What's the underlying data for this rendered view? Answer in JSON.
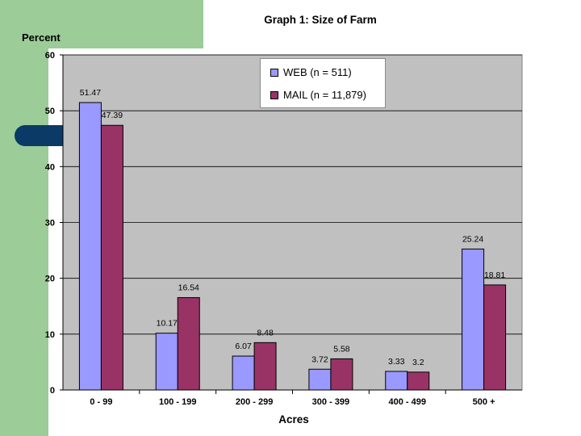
{
  "chart_data": {
    "type": "bar",
    "title": "Graph 1:  Size of Farm",
    "ylabel": "Percent",
    "xlabel": "Acres",
    "categories": [
      "0 - 99",
      "100 - 199",
      "200 - 299",
      "300 - 399",
      "400 - 499",
      "500 +"
    ],
    "series": [
      {
        "name": "WEB (n = 511)",
        "color": "#9999ff",
        "values": [
          51.47,
          10.17,
          6.07,
          3.72,
          3.33,
          25.24
        ]
      },
      {
        "name": "MAIL (n = 11,879)",
        "color": "#993366",
        "values": [
          47.39,
          16.54,
          8.48,
          5.58,
          3.2,
          18.81
        ]
      }
    ],
    "ylim": [
      0,
      60
    ],
    "yticks": [
      0,
      10,
      20,
      30,
      40,
      50,
      60
    ],
    "grid": true,
    "legend": "top-center",
    "plot_background": "#c0c0c0"
  }
}
